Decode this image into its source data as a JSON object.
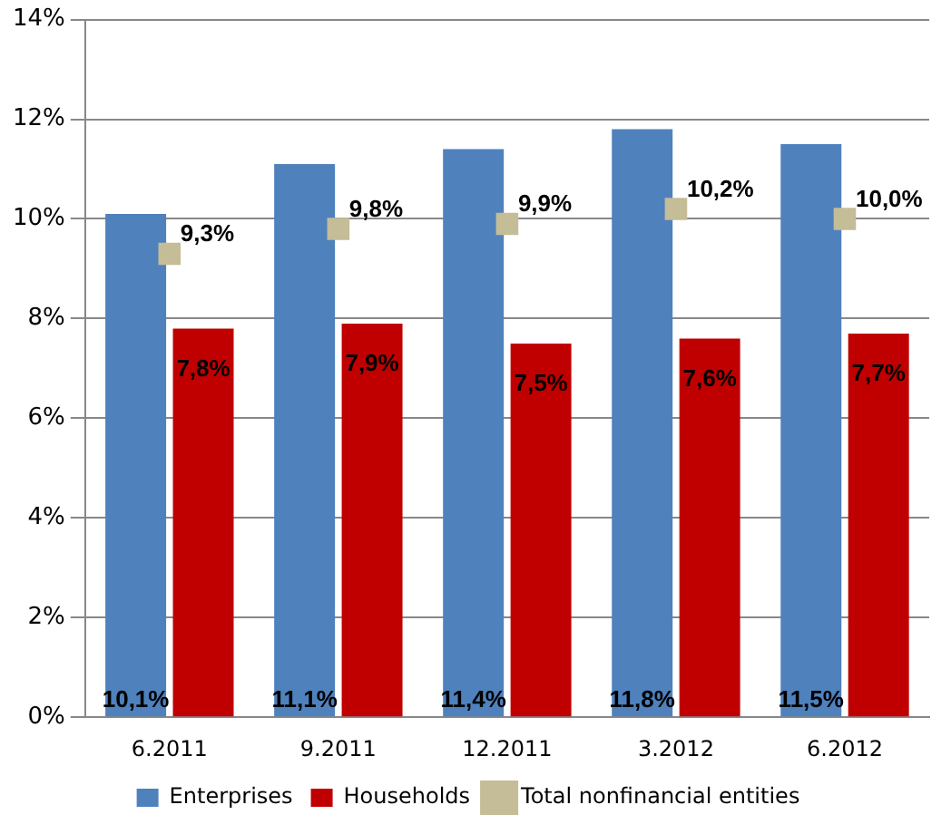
{
  "chart_data": {
    "type": "bar",
    "categories": [
      "6.2011",
      "9.2011",
      "12.2011",
      "3.2012",
      "6.2012"
    ],
    "series": [
      {
        "name": "Enterprises",
        "color": "#4f81bd",
        "values": [
          10.1,
          11.1,
          11.4,
          11.8,
          11.5
        ],
        "value_labels": [
          "10,1%",
          "11,1%",
          "11,4%",
          "11,8%",
          "11,5%"
        ]
      },
      {
        "name": "Households",
        "color": "#c00000",
        "values": [
          7.8,
          7.9,
          7.5,
          7.6,
          7.7
        ],
        "value_labels": [
          "7,8%",
          "7,9%",
          "7,5%",
          "7,6%",
          "7,7%"
        ]
      },
      {
        "name": "Total nonfinancial entities",
        "type": "scatter",
        "color": "#c4bd97",
        "x": [
          "6.2011",
          "9.2011",
          "12.2011",
          "3.2012",
          "6.2012"
        ],
        "values": [
          9.3,
          9.8,
          9.9,
          10.2,
          10.0
        ],
        "value_labels": [
          "9,3%",
          "9,8%",
          "9,9%",
          "10,2%",
          "10,0%"
        ]
      }
    ],
    "ylim": [
      0,
      14
    ],
    "yticks": [
      {
        "value": 0,
        "label": "0%"
      },
      {
        "value": 2,
        "label": "2%"
      },
      {
        "value": 4,
        "label": "4%"
      },
      {
        "value": 6,
        "label": "6%"
      },
      {
        "value": 8,
        "label": "8%"
      },
      {
        "value": 10,
        "label": "10%"
      },
      {
        "value": 12,
        "label": "12%"
      },
      {
        "value": 14,
        "label": "14%"
      }
    ],
    "grid": "y",
    "legend": "bottom",
    "marker": "square"
  }
}
